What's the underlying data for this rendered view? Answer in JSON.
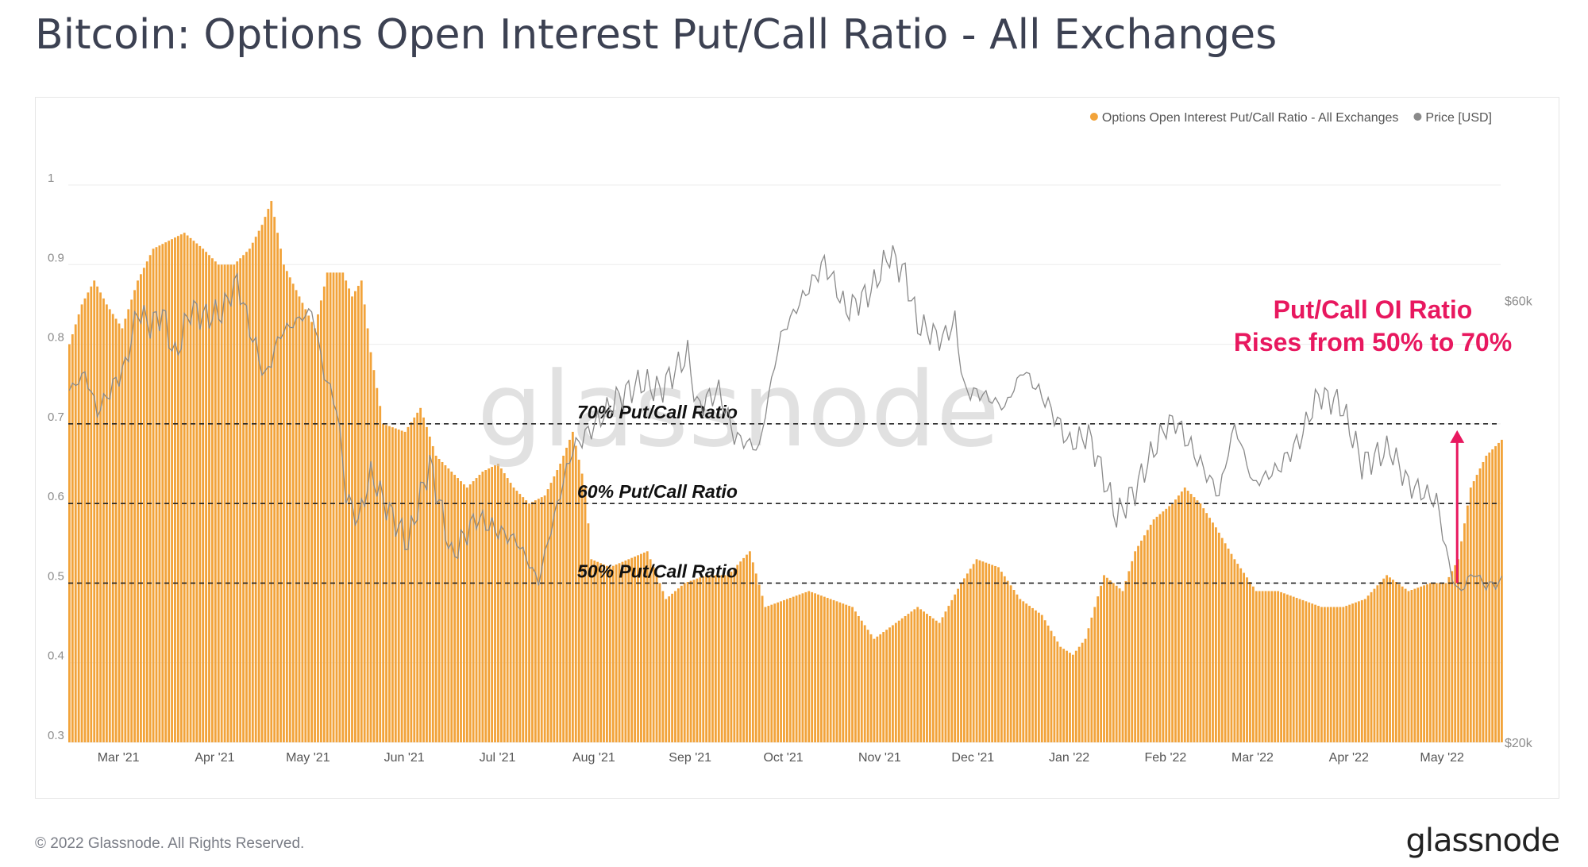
{
  "header": {
    "title": "Bitcoin: Options Open Interest Put/Call Ratio - All Exchanges"
  },
  "footer": {
    "copyright": "© 2022 Glassnode. All Rights Reserved.",
    "logo_text": "glassnode"
  },
  "watermark": "glassnode",
  "colors": {
    "bars": "#f2a33a",
    "price_line": "#8a8a8a",
    "annotation": "#e8185f",
    "refline": "#222222",
    "gridline": "#ececec"
  },
  "chart_data": {
    "type": "bar",
    "title": "Bitcoin: Options Open Interest Put/Call Ratio - All Exchanges",
    "legend": {
      "placement": "top-right",
      "items": [
        {
          "label": "Options Open Interest Put/Call Ratio - All Exchanges",
          "color": "#f2a33a"
        },
        {
          "label": "Price [USD]",
          "color": "#8a8a8a"
        }
      ]
    },
    "x_range": [
      "2021-02-19",
      "2022-05-26"
    ],
    "x_ticks": [
      {
        "date": "2021-03-01",
        "label": "Mar '21"
      },
      {
        "date": "2021-04-01",
        "label": "Apr '21"
      },
      {
        "date": "2021-05-01",
        "label": "May '21"
      },
      {
        "date": "2021-06-01",
        "label": "Jun '21"
      },
      {
        "date": "2021-07-01",
        "label": "Jul '21"
      },
      {
        "date": "2021-08-01",
        "label": "Aug '21"
      },
      {
        "date": "2021-09-01",
        "label": "Sep '21"
      },
      {
        "date": "2021-10-01",
        "label": "Oct '21"
      },
      {
        "date": "2021-11-01",
        "label": "Nov '21"
      },
      {
        "date": "2021-12-01",
        "label": "Dec '21"
      },
      {
        "date": "2022-01-01",
        "label": "Jan '22"
      },
      {
        "date": "2022-02-01",
        "label": "Feb '22"
      },
      {
        "date": "2022-03-01",
        "label": "Mar '22"
      },
      {
        "date": "2022-04-01",
        "label": "Apr '22"
      },
      {
        "date": "2022-05-01",
        "label": "May '22"
      }
    ],
    "y_left": {
      "range": [
        0.3,
        1.0
      ],
      "ticks": [
        "0.3",
        "0.4",
        "0.5",
        "0.6",
        "0.7",
        "0.8",
        "0.9",
        "1"
      ]
    },
    "y_right": {
      "scale": "log",
      "range": [
        20000,
        80000
      ],
      "ticks": [
        {
          "value": 20000,
          "label": "$20k"
        },
        {
          "value": 60000,
          "label": "$60k"
        }
      ]
    },
    "grid": true,
    "reference_lines": [
      {
        "value": 0.7,
        "label": "70% Put/Call Ratio"
      },
      {
        "value": 0.6,
        "label": "60% Put/Call Ratio"
      },
      {
        "value": 0.5,
        "label": "50% Put/Call Ratio"
      }
    ],
    "annotation": {
      "lines": [
        "Put/Call OI Ratio",
        "Rises from 50% to 70%"
      ],
      "arrow_date": "2022-05-12",
      "arrow_from": 0.5,
      "arrow_to": 0.69
    },
    "series": [
      {
        "name": "Options Open Interest Put/Call Ratio - All Exchanges",
        "kind": "bar",
        "points": [
          [
            "2021-02-19",
            0.8
          ],
          [
            "2021-02-23",
            0.85
          ],
          [
            "2021-02-27",
            0.88
          ],
          [
            "2021-03-03",
            0.85
          ],
          [
            "2021-03-08",
            0.82
          ],
          [
            "2021-03-13",
            0.88
          ],
          [
            "2021-03-18",
            0.92
          ],
          [
            "2021-03-23",
            0.93
          ],
          [
            "2021-03-28",
            0.94
          ],
          [
            "2021-04-03",
            0.92
          ],
          [
            "2021-04-08",
            0.9
          ],
          [
            "2021-04-13",
            0.9
          ],
          [
            "2021-04-18",
            0.92
          ],
          [
            "2021-04-22",
            0.95
          ],
          [
            "2021-04-25",
            0.98
          ],
          [
            "2021-04-29",
            0.9
          ],
          [
            "2021-05-04",
            0.86
          ],
          [
            "2021-05-09",
            0.82
          ],
          [
            "2021-05-13",
            0.89
          ],
          [
            "2021-05-18",
            0.89
          ],
          [
            "2021-05-21",
            0.86
          ],
          [
            "2021-05-24",
            0.88
          ],
          [
            "2021-05-27",
            0.79
          ],
          [
            "2021-05-31",
            0.7
          ],
          [
            "2021-06-07",
            0.69
          ],
          [
            "2021-06-12",
            0.72
          ],
          [
            "2021-06-17",
            0.66
          ],
          [
            "2021-06-22",
            0.64
          ],
          [
            "2021-06-27",
            0.62
          ],
          [
            "2021-07-02",
            0.64
          ],
          [
            "2021-07-07",
            0.65
          ],
          [
            "2021-07-12",
            0.62
          ],
          [
            "2021-07-17",
            0.6
          ],
          [
            "2021-07-22",
            0.61
          ],
          [
            "2021-07-27",
            0.65
          ],
          [
            "2021-07-31",
            0.69
          ],
          [
            "2021-08-04",
            0.62
          ],
          [
            "2021-08-06",
            0.53
          ],
          [
            "2021-08-12",
            0.52
          ],
          [
            "2021-08-18",
            0.53
          ],
          [
            "2021-08-24",
            0.54
          ],
          [
            "2021-08-30",
            0.48
          ],
          [
            "2021-09-05",
            0.5
          ],
          [
            "2021-09-12",
            0.51
          ],
          [
            "2021-09-19",
            0.51
          ],
          [
            "2021-09-26",
            0.54
          ],
          [
            "2021-10-01",
            0.47
          ],
          [
            "2021-10-08",
            0.48
          ],
          [
            "2021-10-15",
            0.49
          ],
          [
            "2021-10-22",
            0.48
          ],
          [
            "2021-10-29",
            0.47
          ],
          [
            "2021-11-05",
            0.43
          ],
          [
            "2021-11-12",
            0.45
          ],
          [
            "2021-11-19",
            0.47
          ],
          [
            "2021-11-26",
            0.45
          ],
          [
            "2021-12-03",
            0.5
          ],
          [
            "2021-12-08",
            0.53
          ],
          [
            "2021-12-15",
            0.52
          ],
          [
            "2021-12-22",
            0.48
          ],
          [
            "2021-12-29",
            0.46
          ],
          [
            "2022-01-04",
            0.42
          ],
          [
            "2022-01-08",
            0.41
          ],
          [
            "2022-01-12",
            0.43
          ],
          [
            "2022-01-18",
            0.51
          ],
          [
            "2022-01-24",
            0.49
          ],
          [
            "2022-01-28",
            0.54
          ],
          [
            "2022-02-03",
            0.58
          ],
          [
            "2022-02-09",
            0.6
          ],
          [
            "2022-02-13",
            0.62
          ],
          [
            "2022-02-18",
            0.6
          ],
          [
            "2022-02-23",
            0.57
          ],
          [
            "2022-03-01",
            0.53
          ],
          [
            "2022-03-08",
            0.49
          ],
          [
            "2022-03-15",
            0.49
          ],
          [
            "2022-03-22",
            0.48
          ],
          [
            "2022-03-29",
            0.47
          ],
          [
            "2022-04-05",
            0.47
          ],
          [
            "2022-04-12",
            0.48
          ],
          [
            "2022-04-19",
            0.51
          ],
          [
            "2022-04-26",
            0.49
          ],
          [
            "2022-05-03",
            0.5
          ],
          [
            "2022-05-08",
            0.5
          ],
          [
            "2022-05-12",
            0.53
          ],
          [
            "2022-05-16",
            0.62
          ],
          [
            "2022-05-21",
            0.66
          ],
          [
            "2022-05-26",
            0.68
          ]
        ]
      },
      {
        "name": "Price [USD]",
        "kind": "line",
        "axis": "right",
        "points": [
          [
            "2021-02-19",
            48000
          ],
          [
            "2021-02-24",
            50000
          ],
          [
            "2021-02-28",
            45500
          ],
          [
            "2021-03-05",
            48500
          ],
          [
            "2021-03-09",
            51000
          ],
          [
            "2021-03-13",
            58500
          ],
          [
            "2021-03-17",
            56500
          ],
          [
            "2021-03-21",
            58200
          ],
          [
            "2021-03-25",
            52000
          ],
          [
            "2021-03-30",
            58800
          ],
          [
            "2021-04-04",
            57600
          ],
          [
            "2021-04-09",
            58300
          ],
          [
            "2021-04-14",
            63000
          ],
          [
            "2021-04-18",
            56000
          ],
          [
            "2021-04-23",
            49500
          ],
          [
            "2021-04-28",
            55300
          ],
          [
            "2021-05-03",
            57000
          ],
          [
            "2021-05-08",
            58500
          ],
          [
            "2021-05-12",
            50000
          ],
          [
            "2021-05-16",
            46000
          ],
          [
            "2021-05-19",
            37000
          ],
          [
            "2021-05-23",
            34700
          ],
          [
            "2021-05-27",
            39000
          ],
          [
            "2021-06-01",
            36000
          ],
          [
            "2021-06-08",
            32800
          ],
          [
            "2021-06-15",
            40000
          ],
          [
            "2021-06-22",
            31700
          ],
          [
            "2021-06-30",
            35000
          ],
          [
            "2021-07-06",
            34000
          ],
          [
            "2021-07-13",
            33000
          ],
          [
            "2021-07-20",
            29800
          ],
          [
            "2021-07-25",
            35000
          ],
          [
            "2021-07-31",
            41500
          ],
          [
            "2021-08-07",
            44000
          ],
          [
            "2021-08-14",
            47000
          ],
          [
            "2021-08-22",
            49000
          ],
          [
            "2021-08-28",
            48000
          ],
          [
            "2021-09-06",
            52500
          ],
          [
            "2021-09-09",
            46000
          ],
          [
            "2021-09-16",
            48000
          ],
          [
            "2021-09-21",
            42800
          ],
          [
            "2021-09-29",
            41500
          ],
          [
            "2021-10-06",
            55000
          ],
          [
            "2021-10-15",
            62000
          ],
          [
            "2021-10-20",
            66000
          ],
          [
            "2021-10-27",
            58500
          ],
          [
            "2021-11-04",
            61500
          ],
          [
            "2021-11-10",
            67500
          ],
          [
            "2021-11-15",
            64000
          ],
          [
            "2021-11-19",
            56500
          ],
          [
            "2021-11-27",
            54500
          ],
          [
            "2021-12-01",
            57000
          ],
          [
            "2021-12-04",
            48000
          ],
          [
            "2021-12-10",
            47500
          ],
          [
            "2021-12-17",
            46000
          ],
          [
            "2021-12-23",
            50500
          ],
          [
            "2021-12-31",
            46300
          ],
          [
            "2022-01-07",
            42000
          ],
          [
            "2022-01-13",
            43000
          ],
          [
            "2022-01-22",
            35000
          ],
          [
            "2022-01-28",
            37500
          ],
          [
            "2022-02-07",
            44000
          ],
          [
            "2022-02-10",
            44500
          ],
          [
            "2022-02-17",
            40500
          ],
          [
            "2022-02-24",
            37000
          ],
          [
            "2022-03-01",
            44000
          ],
          [
            "2022-03-07",
            38000
          ],
          [
            "2022-03-15",
            39500
          ],
          [
            "2022-03-22",
            42500
          ],
          [
            "2022-03-28",
            47500
          ],
          [
            "2022-04-04",
            46500
          ],
          [
            "2022-04-11",
            40000
          ],
          [
            "2022-04-20",
            41500
          ],
          [
            "2022-04-26",
            38000
          ],
          [
            "2022-05-05",
            36500
          ],
          [
            "2022-05-09",
            31000
          ],
          [
            "2022-05-12",
            29000
          ],
          [
            "2022-05-17",
            30500
          ],
          [
            "2022-05-21",
            29500
          ],
          [
            "2022-05-26",
            29800
          ]
        ]
      }
    ]
  }
}
